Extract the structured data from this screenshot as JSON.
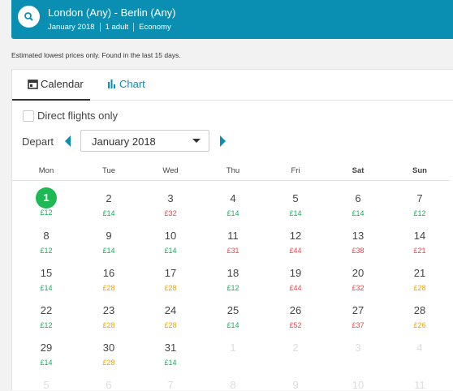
{
  "header": {
    "title": "London (Any) - Berlin (Any)",
    "details": [
      "January 2018",
      "1 adult",
      "Economy"
    ]
  },
  "note": "Estimated lowest prices only. Found in the last 15 days.",
  "tabs": [
    {
      "label": "Calendar",
      "active": true
    },
    {
      "label": "Chart",
      "active": false
    }
  ],
  "filter": {
    "label": "Direct flights only",
    "checked": false
  },
  "depart": {
    "label": "Depart",
    "month": "January 2018"
  },
  "calendar": {
    "weekdays": [
      "Mon",
      "Tue",
      "Wed",
      "Thu",
      "Fri",
      "Sat",
      "Sun"
    ],
    "weeks": [
      [
        {
          "day": 1,
          "price": "£12",
          "color": "#1aab5b",
          "today": true
        },
        {
          "day": 2,
          "price": "£14",
          "color": "#1aab5b"
        },
        {
          "day": 3,
          "price": "£32",
          "color": "#e5484d"
        },
        {
          "day": 4,
          "price": "£14",
          "color": "#1aab5b"
        },
        {
          "day": 5,
          "price": "£14",
          "color": "#1aab5b"
        },
        {
          "day": 6,
          "price": "£14",
          "color": "#1aab5b"
        },
        {
          "day": 7,
          "price": "£12",
          "color": "#1aab5b"
        }
      ],
      [
        {
          "day": 8,
          "price": "£12",
          "color": "#1aab5b"
        },
        {
          "day": 9,
          "price": "£14",
          "color": "#1aab5b"
        },
        {
          "day": 10,
          "price": "£14",
          "color": "#1aab5b"
        },
        {
          "day": 11,
          "price": "£31",
          "color": "#e5484d"
        },
        {
          "day": 12,
          "price": "£44",
          "color": "#e5484d"
        },
        {
          "day": 13,
          "price": "£38",
          "color": "#e5484d"
        },
        {
          "day": 14,
          "price": "£21",
          "color": "#e5484d"
        }
      ],
      [
        {
          "day": 15,
          "price": "£14",
          "color": "#1aab5b"
        },
        {
          "day": 16,
          "price": "£28",
          "color": "#f0a30a"
        },
        {
          "day": 17,
          "price": "£28",
          "color": "#f0a30a"
        },
        {
          "day": 18,
          "price": "£12",
          "color": "#1aab5b"
        },
        {
          "day": 19,
          "price": "£44",
          "color": "#e5484d"
        },
        {
          "day": 20,
          "price": "£32",
          "color": "#e5484d"
        },
        {
          "day": 21,
          "price": "£28",
          "color": "#f0a30a"
        }
      ],
      [
        {
          "day": 22,
          "price": "£12",
          "color": "#1aab5b"
        },
        {
          "day": 23,
          "price": "£28",
          "color": "#f0a30a"
        },
        {
          "day": 24,
          "price": "£28",
          "color": "#f0a30a"
        },
        {
          "day": 25,
          "price": "£14",
          "color": "#1aab5b"
        },
        {
          "day": 26,
          "price": "£52",
          "color": "#e5484d"
        },
        {
          "day": 27,
          "price": "£37",
          "color": "#e5484d"
        },
        {
          "day": 28,
          "price": "£26",
          "color": "#f0a30a"
        }
      ],
      [
        {
          "day": 29,
          "price": "£14",
          "color": "#1aab5b"
        },
        {
          "day": 30,
          "price": "£28",
          "color": "#f0a30a"
        },
        {
          "day": 31,
          "price": "£14",
          "color": "#1aab5b"
        },
        {
          "day": 1,
          "muted": true
        },
        {
          "day": 2,
          "muted": true
        },
        {
          "day": 3,
          "muted": true
        },
        {
          "day": 4,
          "muted": true
        }
      ],
      [
        {
          "day": 5,
          "muted": true
        },
        {
          "day": 6,
          "muted": true
        },
        {
          "day": 7,
          "muted": true
        },
        {
          "day": 8,
          "muted": true
        },
        {
          "day": 9,
          "muted": true
        },
        {
          "day": 10,
          "muted": true
        },
        {
          "day": 11,
          "muted": true
        }
      ]
    ]
  }
}
